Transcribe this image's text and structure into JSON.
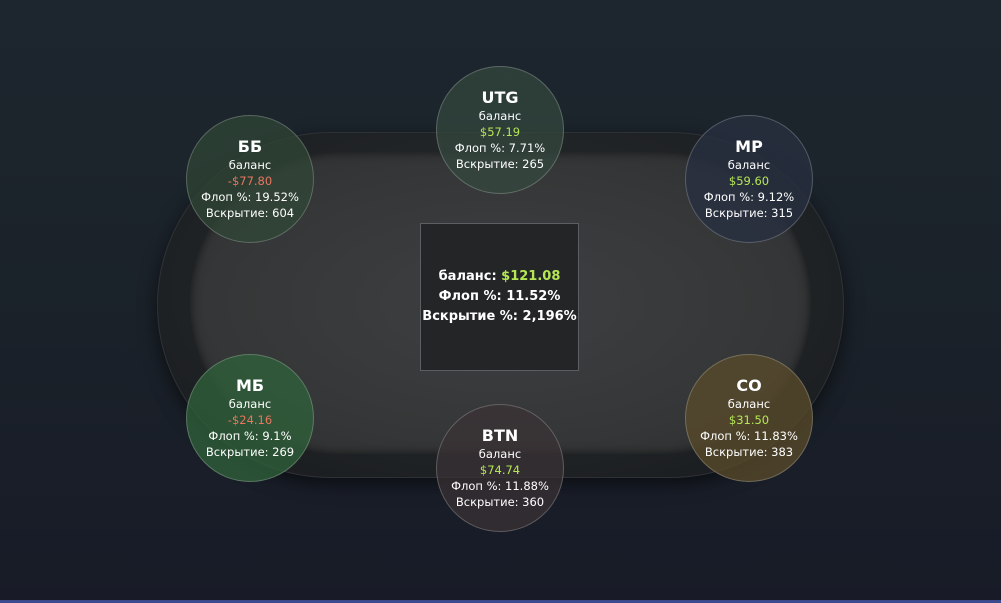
{
  "center": {
    "balance_label": "баланс:",
    "balance_value": "$121.08",
    "flop_label": "Флоп %:",
    "flop_value": "11.52%",
    "showdown_label": "Вскрытие %:",
    "showdown_value": "2,196%"
  },
  "seats": {
    "utg": {
      "name": "UTG",
      "balance_label": "баланс",
      "balance": "$57.19",
      "flop": "Флоп %: 7.71%",
      "showdown": "Вскрытие: 265"
    },
    "bb": {
      "name": "ББ",
      "balance_label": "баланс",
      "balance": "-$77.80",
      "flop": "Флоп %: 19.52%",
      "showdown": "Вскрытие: 604"
    },
    "mp": {
      "name": "MP",
      "balance_label": "баланс",
      "balance": "$59.60",
      "flop": "Флоп %: 9.12%",
      "showdown": "Вскрытие: 315"
    },
    "mb": {
      "name": "МБ",
      "balance_label": "баланс",
      "balance": "-$24.16",
      "flop": "Флоп %: 9.1%",
      "showdown": "Вскрытие: 269"
    },
    "btn": {
      "name": "BTN",
      "balance_label": "баланс",
      "balance": "$74.74",
      "flop": "Флоп %: 11.88%",
      "showdown": "Вскрытие: 360"
    },
    "co": {
      "name": "CO",
      "balance_label": "баланс",
      "balance": "$31.50",
      "flop": "Флоп %: 11.83%",
      "showdown": "Вскрытие: 383"
    }
  },
  "colors": {
    "positive": "#b6e655",
    "negative": "#e8765f",
    "background": "#1c232b"
  }
}
